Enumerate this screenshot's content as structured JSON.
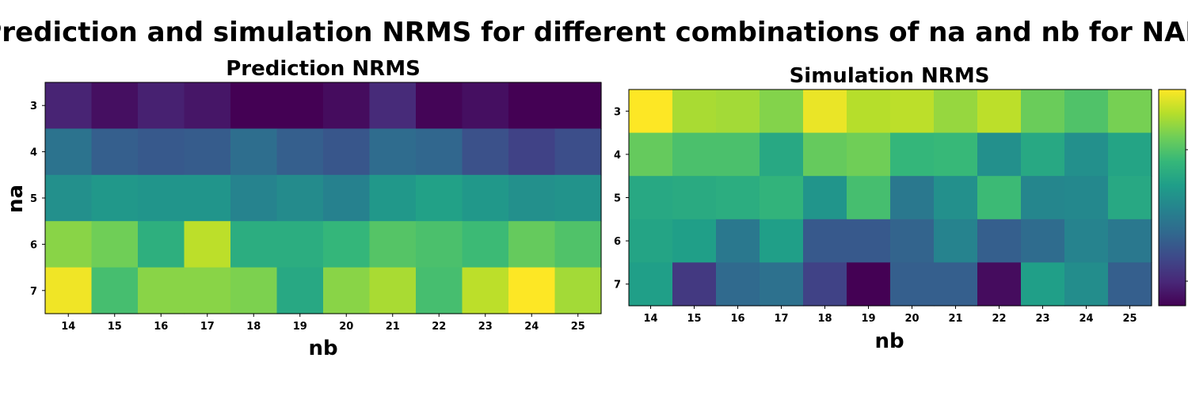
{
  "figure": {
    "suptitle": "Prediction and simulation NRMS for different combinations of na and nb for NAR"
  },
  "colormap": {
    "name": "viridis",
    "stops": [
      "#440154",
      "#482878",
      "#3e4989",
      "#31688e",
      "#26828e",
      "#1f9e89",
      "#35b779",
      "#6ece58",
      "#b5de2b",
      "#fde725"
    ]
  },
  "chart_data": [
    {
      "type": "heatmap",
      "title": "Prediction NRMS",
      "xlabel": "nb",
      "ylabel": "na",
      "x": [
        "14",
        "15",
        "16",
        "17",
        "18",
        "19",
        "20",
        "21",
        "22",
        "23",
        "24",
        "25"
      ],
      "y": [
        "3",
        "4",
        "5",
        "6",
        "7"
      ],
      "values": [
        [
          0.1,
          0.04,
          0.09,
          0.06,
          0.0,
          0.0,
          0.03,
          0.12,
          0.01,
          0.04,
          0.0,
          0.0
        ],
        [
          0.38,
          0.3,
          0.28,
          0.29,
          0.36,
          0.3,
          0.27,
          0.35,
          0.33,
          0.25,
          0.2,
          0.24
        ],
        [
          0.5,
          0.53,
          0.52,
          0.52,
          0.45,
          0.48,
          0.44,
          0.53,
          0.57,
          0.53,
          0.5,
          0.51
        ],
        [
          0.82,
          0.78,
          0.63,
          0.9,
          0.62,
          0.62,
          0.66,
          0.73,
          0.71,
          0.68,
          0.76,
          0.72
        ],
        [
          0.98,
          0.7,
          0.82,
          0.82,
          0.8,
          0.6,
          0.82,
          0.87,
          0.7,
          0.9,
          1.0,
          0.86
        ]
      ],
      "colorbar": false
    },
    {
      "type": "heatmap",
      "title": "Simulation NRMS",
      "xlabel": "nb",
      "ylabel": "",
      "x": [
        "14",
        "15",
        "16",
        "17",
        "18",
        "19",
        "20",
        "21",
        "22",
        "23",
        "24",
        "25"
      ],
      "y": [
        "3",
        "4",
        "5",
        "6",
        "7"
      ],
      "values": [
        [
          1.0,
          0.87,
          0.86,
          0.81,
          0.97,
          0.89,
          0.9,
          0.84,
          0.9,
          0.77,
          0.72,
          0.79
        ],
        [
          0.76,
          0.71,
          0.71,
          0.6,
          0.76,
          0.78,
          0.66,
          0.67,
          0.5,
          0.6,
          0.5,
          0.58
        ],
        [
          0.6,
          0.61,
          0.62,
          0.65,
          0.52,
          0.7,
          0.4,
          0.5,
          0.68,
          0.46,
          0.47,
          0.6
        ],
        [
          0.58,
          0.56,
          0.4,
          0.56,
          0.28,
          0.28,
          0.32,
          0.45,
          0.3,
          0.35,
          0.45,
          0.4
        ],
        [
          0.56,
          0.17,
          0.34,
          0.37,
          0.2,
          0.0,
          0.3,
          0.3,
          0.03,
          0.56,
          0.49,
          0.3
        ]
      ],
      "colorbar": true
    }
  ]
}
